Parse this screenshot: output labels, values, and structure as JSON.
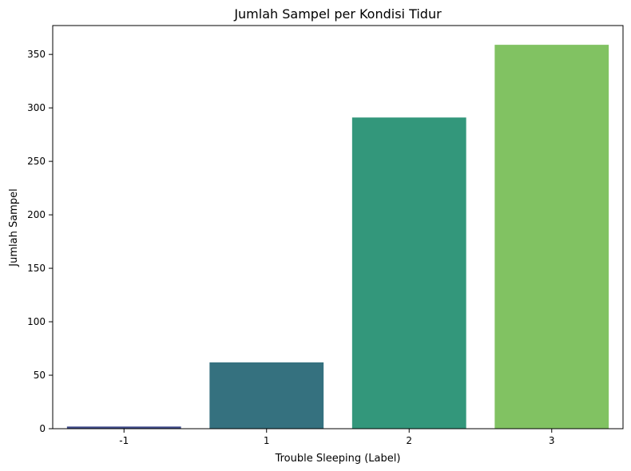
{
  "chart_data": {
    "type": "bar",
    "title": "Jumlah Sampel per Kondisi Tidur",
    "xlabel": "Trouble Sleeping (Label)",
    "ylabel": "Jumlah Sampel",
    "categories": [
      "-1",
      "1",
      "2",
      "3"
    ],
    "values": [
      2,
      62,
      291,
      359
    ],
    "colors": [
      "#3e4a89",
      "#35717f",
      "#33977b",
      "#81c262"
    ],
    "ylim": [
      0,
      377
    ],
    "yticks": [
      0,
      50,
      100,
      150,
      200,
      250,
      300,
      350
    ],
    "grid": false,
    "legend": "none"
  }
}
